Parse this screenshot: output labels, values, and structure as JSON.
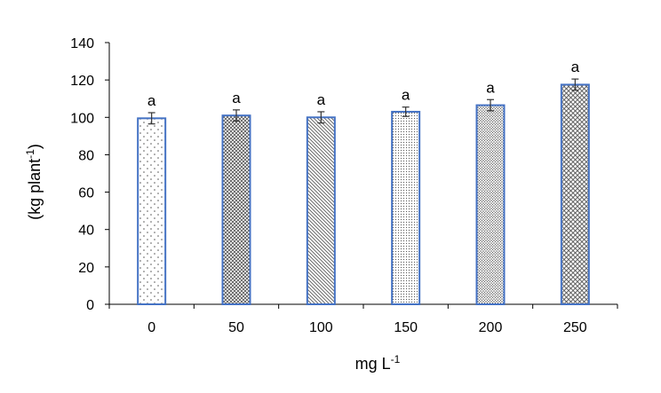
{
  "chart_data": {
    "type": "bar",
    "title": "",
    "xlabel": "mg L",
    "xlabel_sup": "-1",
    "ylabel": "(kg plant",
    "ylabel_sup": "-1",
    "ylabel_close": ")",
    "categories": [
      "0",
      "50",
      "100",
      "150",
      "200",
      "250"
    ],
    "values": [
      99.5,
      101,
      100,
      103,
      106.5,
      117.5
    ],
    "errors": [
      3,
      3,
      3,
      2.5,
      3,
      3
    ],
    "significance_labels": [
      "a",
      "a",
      "a",
      "a",
      "a",
      "a"
    ],
    "ylim": [
      0,
      140
    ],
    "yticks": [
      0,
      20,
      40,
      60,
      80,
      100,
      120,
      140
    ],
    "grid": false,
    "legend": "none",
    "colors": {
      "bar_border": "#4472C4",
      "pattern": "#5a5a5a",
      "axis": "#000000"
    },
    "bar_patterns": [
      "sparse-dots",
      "dense-crosshatch",
      "diagonal-hatch",
      "fine-dots",
      "dense-dots",
      "diamond-grid"
    ]
  }
}
